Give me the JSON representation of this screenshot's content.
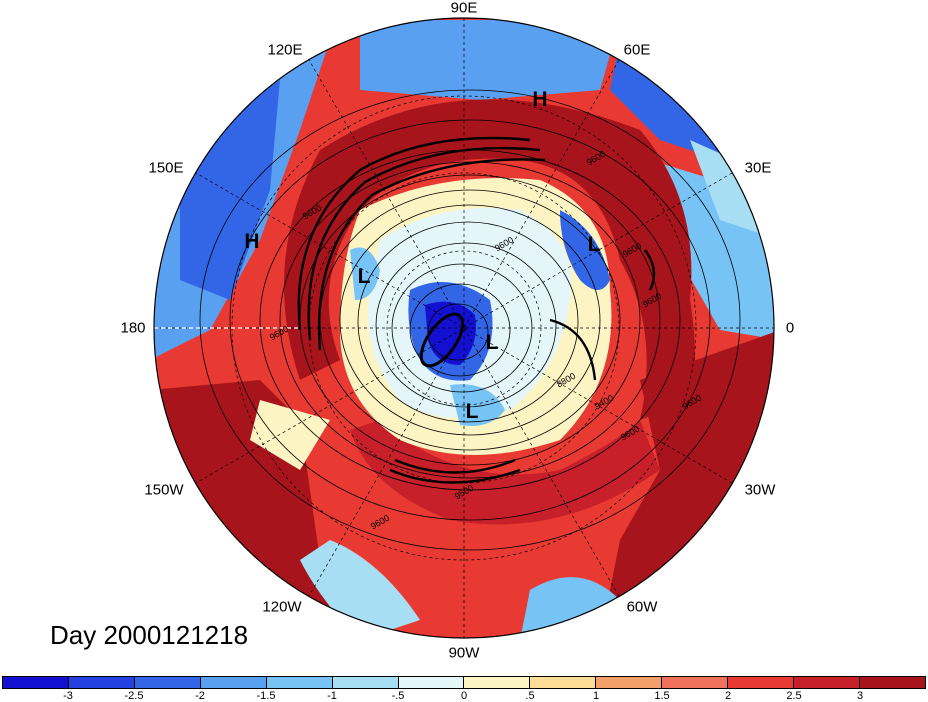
{
  "colors": {
    "deep_blue": "#1410d2",
    "mid_blue": "#3366e6",
    "light_blue": "#5aa0f0",
    "pale_blue": "#a8def4",
    "near_white": "#fbfdfd",
    "cream": "#fdf4c4",
    "orange": "#f4a06a",
    "red": "#e83a32",
    "dark_red": "#a8141c"
  },
  "map": {
    "projection": "north-polar-stereographic",
    "longitude_labels": [
      "90E",
      "60E",
      "30E",
      "0",
      "30W",
      "60W",
      "90W",
      "120W",
      "150W",
      "180",
      "150E",
      "120E"
    ],
    "pressure_centers": [
      "H",
      "H",
      "L",
      "L",
      "L",
      "L"
    ],
    "contour_labels": [
      "9600",
      "9600",
      "9600",
      "9600",
      "9600",
      "9600",
      "9600",
      "9600",
      "9600",
      "9400",
      "8800",
      "9500"
    ]
  },
  "date_label": "Day 2000121218",
  "colorbar": {
    "colors": [
      "#1410d2",
      "#2440e0",
      "#3366e6",
      "#5aa0f0",
      "#78c3f6",
      "#a8def4",
      "#e4f6fa",
      "#fdf4c4",
      "#fcdc96",
      "#f4a06a",
      "#f0725a",
      "#e83a32",
      "#c8202a",
      "#a8141c"
    ],
    "ticks": [
      "-3",
      "-2.5",
      "-2",
      "-1.5",
      "-1",
      "-.5",
      "0",
      ".5",
      "1",
      "1.5",
      "2",
      "2.5",
      "3"
    ]
  }
}
